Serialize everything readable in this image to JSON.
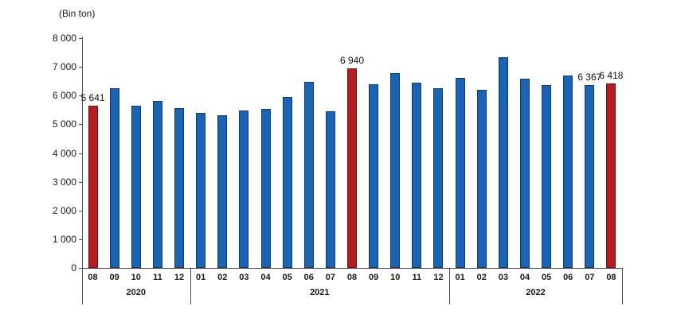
{
  "colors": {
    "bar_blue": "#1b64b5",
    "bar_blue_border": "#123a66",
    "bar_red": "#b41d22",
    "bar_red_border": "#701013",
    "axis_line": "#4a4a4a",
    "text": "#1a1a1a"
  },
  "chart_data": {
    "type": "bar",
    "title": "",
    "unit_label": "(Bin ton)",
    "ylabel": "",
    "xlabel": "",
    "ylim": [
      0,
      8000
    ],
    "ytick_step": 1000,
    "ytick_labels": [
      "8 000",
      "7 000",
      "6 000",
      "5 000",
      "4 000",
      "3 000",
      "2 000",
      "1 000",
      "0"
    ],
    "grid": false,
    "legend": false,
    "highlight_color_meaning": "red bars mark August (08) of each year; labeled with values",
    "year_groups": [
      {
        "year": "2020",
        "month_count": 5
      },
      {
        "year": "2021",
        "month_count": 12
      },
      {
        "year": "2022",
        "month_count": 8
      }
    ],
    "bars": [
      {
        "year": "2020",
        "month": "08",
        "value": 5641,
        "highlighted": true,
        "label": "5 641"
      },
      {
        "year": "2020",
        "month": "09",
        "value": 6270,
        "highlighted": false,
        "label": ""
      },
      {
        "year": "2020",
        "month": "10",
        "value": 5640,
        "highlighted": false,
        "label": ""
      },
      {
        "year": "2020",
        "month": "11",
        "value": 5800,
        "highlighted": false,
        "label": ""
      },
      {
        "year": "2020",
        "month": "12",
        "value": 5570,
        "highlighted": false,
        "label": ""
      },
      {
        "year": "2021",
        "month": "01",
        "value": 5410,
        "highlighted": false,
        "label": ""
      },
      {
        "year": "2021",
        "month": "02",
        "value": 5310,
        "highlighted": false,
        "label": ""
      },
      {
        "year": "2021",
        "month": "03",
        "value": 5470,
        "highlighted": false,
        "label": ""
      },
      {
        "year": "2021",
        "month": "04",
        "value": 5530,
        "highlighted": false,
        "label": ""
      },
      {
        "year": "2021",
        "month": "05",
        "value": 5950,
        "highlighted": false,
        "label": ""
      },
      {
        "year": "2021",
        "month": "06",
        "value": 6470,
        "highlighted": false,
        "label": ""
      },
      {
        "year": "2021",
        "month": "07",
        "value": 5440,
        "highlighted": false,
        "label": ""
      },
      {
        "year": "2021",
        "month": "08",
        "value": 6940,
        "highlighted": true,
        "label": "6 940"
      },
      {
        "year": "2021",
        "month": "09",
        "value": 6400,
        "highlighted": false,
        "label": ""
      },
      {
        "year": "2021",
        "month": "10",
        "value": 6770,
        "highlighted": false,
        "label": ""
      },
      {
        "year": "2021",
        "month": "11",
        "value": 6450,
        "highlighted": false,
        "label": ""
      },
      {
        "year": "2021",
        "month": "12",
        "value": 6260,
        "highlighted": false,
        "label": ""
      },
      {
        "year": "2022",
        "month": "01",
        "value": 6630,
        "highlighted": false,
        "label": ""
      },
      {
        "year": "2022",
        "month": "02",
        "value": 6190,
        "highlighted": false,
        "label": ""
      },
      {
        "year": "2022",
        "month": "03",
        "value": 7330,
        "highlighted": false,
        "label": ""
      },
      {
        "year": "2022",
        "month": "04",
        "value": 6580,
        "highlighted": false,
        "label": ""
      },
      {
        "year": "2022",
        "month": "05",
        "value": 6360,
        "highlighted": false,
        "label": ""
      },
      {
        "year": "2022",
        "month": "06",
        "value": 6700,
        "highlighted": false,
        "label": ""
      },
      {
        "year": "2022",
        "month": "07",
        "value": 6367,
        "highlighted": false,
        "label": "6 367"
      },
      {
        "year": "2022",
        "month": "08",
        "value": 6418,
        "highlighted": true,
        "label": "6 418"
      }
    ]
  }
}
